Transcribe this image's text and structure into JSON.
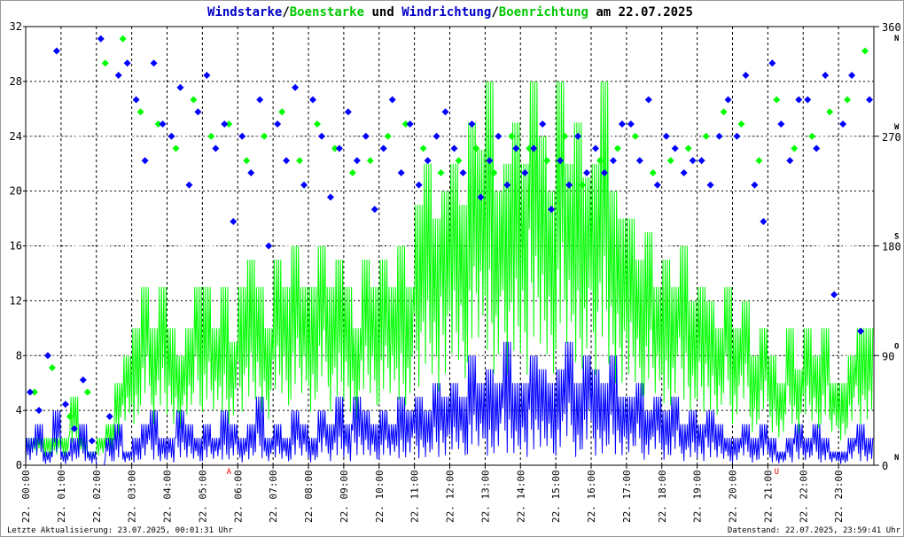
{
  "chart_data": {
    "type": "line",
    "title_parts": [
      {
        "text": "Windstarke",
        "color": "#0000c8"
      },
      {
        "text": "/",
        "color": "#000000"
      },
      {
        "text": "Boenstarke",
        "color": "#00c800"
      },
      {
        "text": " und ",
        "color": "#000000"
      },
      {
        "text": "Windrichtung",
        "color": "#0000c8"
      },
      {
        "text": "/",
        "color": "#000000"
      },
      {
        "text": "Boenrichtung",
        "color": "#00c800"
      },
      {
        "text": " am 22.07.2025",
        "color": "#000000"
      }
    ],
    "ylim_left": [
      0,
      32
    ],
    "yticks_left": [
      "0",
      "4",
      "8",
      "12",
      "16",
      "20",
      "24",
      "28",
      "32"
    ],
    "ylim_right": [
      0,
      360
    ],
    "yticks_right": [
      "0",
      "90",
      "180",
      "270",
      "360"
    ],
    "compass": [
      "N",
      "O",
      "S",
      "W",
      "N"
    ],
    "xticks": [
      "22. 00:00",
      "22. 01:00",
      "22. 02:00",
      "22. 03:00",
      "22. 04:00",
      "22. 05:00",
      "22. 06:00",
      "22. 07:00",
      "22. 08:00",
      "22. 09:00",
      "22. 10:00",
      "22. 11:00",
      "22. 12:00",
      "22. 13:00",
      "22. 14:00",
      "22. 15:00",
      "22. 16:00",
      "22. 17:00",
      "22. 18:00",
      "22. 19:00",
      "22. 20:00",
      "22. 21:00",
      "22. 22:00",
      "22. 23:00"
    ],
    "markers": [
      {
        "label": "A",
        "hour": 5.75
      },
      {
        "label": "U",
        "hour": 21.25
      }
    ],
    "grid": true,
    "interval_minutes": 15,
    "series": [
      {
        "name": "Windstarke",
        "color": "#0000ff",
        "values": [
          2,
          3,
          1,
          4,
          1,
          2,
          3,
          1,
          0,
          2,
          3,
          1,
          2,
          3,
          4,
          2,
          2,
          4,
          3,
          2,
          3,
          2,
          4,
          3,
          2,
          3,
          5,
          2,
          3,
          2,
          4,
          3,
          2,
          4,
          3,
          5,
          3,
          5,
          4,
          3,
          4,
          3,
          5,
          4,
          5,
          4,
          6,
          5,
          6,
          5,
          8,
          6,
          7,
          6,
          9,
          6,
          6,
          8,
          7,
          6,
          7,
          9,
          6,
          8,
          7,
          6,
          8,
          5,
          5,
          6,
          4,
          5,
          4,
          5,
          3,
          4,
          3,
          4,
          3,
          2,
          2,
          3,
          2,
          3,
          2,
          1,
          2,
          3,
          2,
          3,
          2,
          1,
          1,
          2,
          3,
          2
        ]
      },
      {
        "name": "Boenstarke",
        "color": "#00ff00",
        "values": [
          2,
          2,
          2,
          2,
          2,
          5,
          2,
          1,
          2,
          3,
          6,
          8,
          10,
          13,
          10,
          13,
          10,
          8,
          10,
          13,
          13,
          10,
          13,
          9,
          13,
          15,
          13,
          10,
          15,
          13,
          16,
          13,
          13,
          16,
          13,
          15,
          13,
          10,
          15,
          13,
          15,
          13,
          16,
          13,
          19,
          22,
          18,
          20,
          22,
          19,
          25,
          23,
          28,
          20,
          22,
          25,
          22,
          28,
          24,
          20,
          28,
          22,
          25,
          21,
          22,
          28,
          20,
          18,
          18,
          15,
          17,
          13,
          15,
          13,
          16,
          12,
          13,
          12,
          10,
          13,
          10,
          12,
          8,
          10,
          8,
          6,
          10,
          7,
          10,
          8,
          10,
          6,
          6,
          8,
          10,
          10
        ]
      },
      {
        "name": "Windrichtung",
        "color": "#0000ff",
        "interval_minutes": 15,
        "values": [
          60,
          45,
          90,
          340,
          50,
          30,
          70,
          20,
          350,
          40,
          320,
          330,
          300,
          250,
          330,
          280,
          270,
          310,
          230,
          290,
          320,
          260,
          280,
          200,
          270,
          240,
          300,
          180,
          280,
          250,
          310,
          230,
          300,
          270,
          220,
          260,
          290,
          250,
          270,
          210,
          260,
          300,
          240,
          280,
          230,
          250,
          270,
          290,
          260,
          240,
          280,
          220,
          250,
          270,
          230,
          260,
          240,
          260,
          280,
          210,
          250,
          230,
          270,
          240,
          260,
          240,
          250,
          280,
          280,
          250,
          300,
          230,
          270,
          260,
          240,
          250,
          250,
          230,
          270,
          300,
          270,
          320,
          230,
          200,
          330,
          280,
          250,
          300,
          300,
          260,
          320,
          140,
          280,
          320,
          110,
          300
        ]
      },
      {
        "name": "Boenrichtung",
        "color": "#00ff00",
        "interval_minutes": 30,
        "values": [
          60,
          80,
          40,
          60,
          330,
          350,
          290,
          280,
          260,
          300,
          270,
          280,
          250,
          270,
          290,
          250,
          280,
          260,
          240,
          250,
          270,
          280,
          260,
          240,
          250,
          260,
          240,
          270,
          260,
          250,
          270,
          230,
          250,
          260,
          270,
          240,
          250,
          260,
          270,
          290,
          280,
          250,
          300,
          260,
          270,
          290,
          300,
          340
        ]
      }
    ]
  },
  "footer": {
    "left": "Letzte Aktualisierung: 23.07.2025, 00:01:31 Uhr",
    "right": "Datenstand: 22.07.2025, 23:59:41 Uhr"
  }
}
